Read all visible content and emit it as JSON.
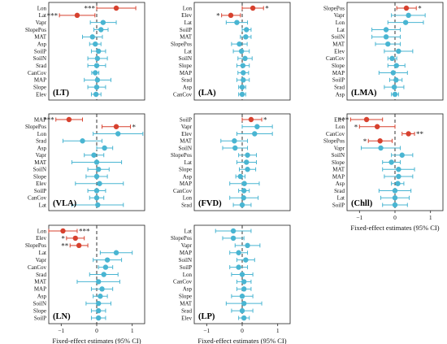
{
  "figure": {
    "xlabel": "Fixed-effect estimates (95% CI)",
    "xlim": [
      -1.35,
      1.35
    ],
    "xticks": [
      -1,
      0,
      1
    ],
    "colors": {
      "significant": "#d7412e",
      "nonsignificant": "#49b5d2",
      "zero_line": "#333333",
      "frame": "#222222"
    }
  },
  "chart_data": [
    {
      "type": "forest",
      "panel_label": "(LT)",
      "rows": [
        {
          "label": "Lon",
          "est": 0.55,
          "lo": 0.0,
          "hi": 1.1,
          "sig": true,
          "stars": "***",
          "stars_side": "left"
        },
        {
          "label": "Lat",
          "est": -0.55,
          "lo": -1.05,
          "hi": -0.05,
          "sig": true,
          "stars": "***",
          "stars_side": "left"
        },
        {
          "label": "Vapr",
          "est": 0.18,
          "lo": -0.18,
          "hi": 0.55,
          "sig": false
        },
        {
          "label": "SlopePos",
          "est": 0.12,
          "lo": -0.08,
          "hi": 0.32,
          "sig": false
        },
        {
          "label": "MAT",
          "est": -0.12,
          "lo": -0.4,
          "hi": 0.16,
          "sig": false
        },
        {
          "label": "Asp",
          "est": -0.04,
          "lo": -0.2,
          "hi": 0.12,
          "sig": false
        },
        {
          "label": "SoilP",
          "est": 0.05,
          "lo": -0.15,
          "hi": 0.25,
          "sig": false
        },
        {
          "label": "SoilN",
          "est": 0.02,
          "lo": -0.25,
          "hi": 0.3,
          "sig": false
        },
        {
          "label": "Srad",
          "est": 0.0,
          "lo": -0.25,
          "hi": 0.25,
          "sig": false
        },
        {
          "label": "CanCov",
          "est": -0.04,
          "lo": -0.14,
          "hi": 0.06,
          "sig": false
        },
        {
          "label": "MAP",
          "est": 0.02,
          "lo": -0.35,
          "hi": 0.4,
          "sig": false
        },
        {
          "label": "Slope",
          "est": 0.0,
          "lo": -0.25,
          "hi": 0.25,
          "sig": false
        },
        {
          "label": "Elev",
          "est": -0.02,
          "lo": -0.15,
          "hi": 0.12,
          "sig": false
        }
      ]
    },
    {
      "type": "forest",
      "panel_label": "(LA)",
      "rows": [
        {
          "label": "Lon",
          "est": 0.3,
          "lo": 0.0,
          "hi": 0.6,
          "sig": true,
          "stars": "*",
          "stars_side": "right"
        },
        {
          "label": "Elev",
          "est": -0.32,
          "lo": -0.58,
          "hi": -0.05,
          "sig": true,
          "stars": "*",
          "stars_side": "left"
        },
        {
          "label": "Lat",
          "est": -0.15,
          "lo": -0.45,
          "hi": 0.15,
          "sig": false
        },
        {
          "label": "SoilP",
          "est": 0.12,
          "lo": 0.0,
          "hi": 0.25,
          "sig": false
        },
        {
          "label": "MAT",
          "est": 0.1,
          "lo": -0.05,
          "hi": 0.25,
          "sig": false
        },
        {
          "label": "SlopePos",
          "est": -0.08,
          "lo": -0.3,
          "hi": 0.14,
          "sig": false
        },
        {
          "label": "Lat",
          "est": -0.02,
          "lo": -0.25,
          "hi": 0.2,
          "sig": false
        },
        {
          "label": "SoilN",
          "est": 0.08,
          "lo": -0.12,
          "hi": 0.28,
          "sig": false
        },
        {
          "label": "Slope",
          "est": 0.02,
          "lo": -0.15,
          "hi": 0.2,
          "sig": false
        },
        {
          "label": "MAP",
          "est": 0.03,
          "lo": -0.12,
          "hi": 0.18,
          "sig": false
        },
        {
          "label": "Srad",
          "est": 0.03,
          "lo": -0.15,
          "hi": 0.2,
          "sig": false
        },
        {
          "label": "Asp",
          "est": 0.0,
          "lo": -0.1,
          "hi": 0.1,
          "sig": false
        },
        {
          "label": "CanCov",
          "est": 0.0,
          "lo": -0.1,
          "hi": 0.1,
          "sig": false
        }
      ]
    },
    {
      "type": "forest",
      "panel_label": "(LMA)",
      "rows": [
        {
          "label": "SlopePos",
          "est": 0.32,
          "lo": 0.05,
          "hi": 0.6,
          "sig": true,
          "stars": "*",
          "stars_side": "right"
        },
        {
          "label": "Vapr",
          "est": 0.38,
          "lo": -0.1,
          "hi": 0.85,
          "sig": false
        },
        {
          "label": "Lon",
          "est": 0.3,
          "lo": -0.2,
          "hi": 0.8,
          "sig": false
        },
        {
          "label": "Lat",
          "est": -0.25,
          "lo": -0.65,
          "hi": 0.15,
          "sig": false
        },
        {
          "label": "SoilN",
          "est": -0.25,
          "lo": -0.65,
          "hi": 0.15,
          "sig": false
        },
        {
          "label": "MAT",
          "est": -0.2,
          "lo": -0.55,
          "hi": 0.15,
          "sig": false
        },
        {
          "label": "Elev",
          "est": 0.1,
          "lo": -0.3,
          "hi": 0.5,
          "sig": false
        },
        {
          "label": "CanCov",
          "est": -0.08,
          "lo": -0.2,
          "hi": 0.05,
          "sig": false
        },
        {
          "label": "Slope",
          "est": 0.04,
          "lo": -0.2,
          "hi": 0.28,
          "sig": false
        },
        {
          "label": "MAP",
          "est": -0.05,
          "lo": -0.45,
          "hi": 0.35,
          "sig": false
        },
        {
          "label": "SoilP",
          "est": 0.03,
          "lo": -0.15,
          "hi": 0.2,
          "sig": false
        },
        {
          "label": "Srad",
          "est": -0.02,
          "lo": -0.3,
          "hi": 0.25,
          "sig": false
        },
        {
          "label": "Asp",
          "est": 0.0,
          "lo": -0.1,
          "hi": 0.1,
          "sig": false
        }
      ]
    },
    {
      "type": "forest",
      "panel_label": "(VLA)",
      "rows": [
        {
          "label": "MAP",
          "est": -0.78,
          "lo": -1.15,
          "hi": -0.4,
          "sig": true,
          "stars": "***",
          "stars_side": "left"
        },
        {
          "label": "SlopePos",
          "est": 0.55,
          "lo": 0.15,
          "hi": 0.95,
          "sig": true,
          "stars": "*",
          "stars_side": "right"
        },
        {
          "label": "Lon",
          "est": 0.6,
          "lo": -0.1,
          "hi": 1.3,
          "sig": false
        },
        {
          "label": "Srad",
          "est": -0.4,
          "lo": -0.95,
          "hi": 0.15,
          "sig": false
        },
        {
          "label": "Asp",
          "est": 0.22,
          "lo": 0.0,
          "hi": 0.45,
          "sig": false
        },
        {
          "label": "Vapr",
          "est": -0.08,
          "lo": -0.35,
          "hi": 0.2,
          "sig": false
        },
        {
          "label": "MAT",
          "est": 0.0,
          "lo": -0.7,
          "hi": 0.7,
          "sig": false
        },
        {
          "label": "SoilN",
          "est": 0.05,
          "lo": -0.25,
          "hi": 0.35,
          "sig": false
        },
        {
          "label": "Slope",
          "est": 0.0,
          "lo": -0.3,
          "hi": 0.3,
          "sig": false
        },
        {
          "label": "Elev",
          "est": 0.08,
          "lo": -0.6,
          "hi": 0.75,
          "sig": false
        },
        {
          "label": "SoilP",
          "est": 0.0,
          "lo": -0.25,
          "hi": 0.25,
          "sig": false
        },
        {
          "label": "CanCov",
          "est": 0.0,
          "lo": -0.2,
          "hi": 0.2,
          "sig": false
        },
        {
          "label": "Lat",
          "est": 0.03,
          "lo": -0.7,
          "hi": 0.75,
          "sig": false
        }
      ]
    },
    {
      "type": "forest",
      "panel_label": "(FVD)",
      "rows": [
        {
          "label": "SoilP",
          "est": 0.25,
          "lo": 0.0,
          "hi": 0.55,
          "sig": true,
          "stars": "*",
          "stars_side": "right"
        },
        {
          "label": "Vapr",
          "est": 0.42,
          "lo": 0.0,
          "hi": 0.85,
          "sig": false
        },
        {
          "label": "Elev",
          "est": 0.35,
          "lo": -0.15,
          "hi": 0.85,
          "sig": false
        },
        {
          "label": "MAT",
          "est": -0.22,
          "lo": -0.6,
          "hi": 0.15,
          "sig": false
        },
        {
          "label": "SoilN",
          "est": -0.2,
          "lo": -0.55,
          "hi": 0.15,
          "sig": false
        },
        {
          "label": "SlopePos",
          "est": 0.15,
          "lo": -0.1,
          "hi": 0.4,
          "sig": false
        },
        {
          "label": "Lat",
          "est": 0.12,
          "lo": -0.15,
          "hi": 0.4,
          "sig": false
        },
        {
          "label": "Slope",
          "est": 0.15,
          "lo": -0.08,
          "hi": 0.38,
          "sig": false
        },
        {
          "label": "Asp",
          "est": -0.05,
          "lo": -0.18,
          "hi": 0.08,
          "sig": false
        },
        {
          "label": "MAP",
          "est": 0.06,
          "lo": -0.35,
          "hi": 0.48,
          "sig": false
        },
        {
          "label": "CanCov",
          "est": 0.05,
          "lo": -0.1,
          "hi": 0.2,
          "sig": false
        },
        {
          "label": "Lon",
          "est": 0.04,
          "lo": -0.35,
          "hi": 0.45,
          "sig": false
        },
        {
          "label": "Srad",
          "est": 0.0,
          "lo": -0.25,
          "hi": 0.25,
          "sig": false
        }
      ]
    },
    {
      "type": "forest",
      "panel_label": "(Chll)",
      "rows": [
        {
          "label": "Elev",
          "est": -0.8,
          "lo": -1.25,
          "hi": -0.35,
          "sig": true,
          "stars": "***",
          "stars_side": "left"
        },
        {
          "label": "Lon",
          "est": -0.5,
          "lo": -1.0,
          "hi": 0.0,
          "sig": true,
          "stars": "*",
          "stars_side": "left"
        },
        {
          "label": "CanCov",
          "est": 0.38,
          "lo": 0.2,
          "hi": 0.55,
          "sig": true,
          "stars": "**",
          "stars_side": "right"
        },
        {
          "label": "SlopePos",
          "est": -0.42,
          "lo": -0.75,
          "hi": -0.08,
          "sig": true,
          "stars": "*",
          "stars_side": "left"
        },
        {
          "label": "Vapr",
          "est": -0.4,
          "lo": -0.95,
          "hi": 0.15,
          "sig": false
        },
        {
          "label": "SoilN",
          "est": 0.2,
          "lo": -0.1,
          "hi": 0.5,
          "sig": false
        },
        {
          "label": "Slope",
          "est": -0.1,
          "lo": -0.35,
          "hi": 0.15,
          "sig": false
        },
        {
          "label": "MAT",
          "est": 0.1,
          "lo": -0.35,
          "hi": 0.55,
          "sig": false
        },
        {
          "label": "MAP",
          "est": 0.1,
          "lo": -0.3,
          "hi": 0.5,
          "sig": false
        },
        {
          "label": "Asp",
          "est": 0.08,
          "lo": -0.1,
          "hi": 0.25,
          "sig": false
        },
        {
          "label": "Srad",
          "est": 0.0,
          "lo": -0.45,
          "hi": 0.45,
          "sig": false
        },
        {
          "label": "Lat",
          "est": 0.0,
          "lo": -0.4,
          "hi": 0.4,
          "sig": false
        },
        {
          "label": "SoilP",
          "est": 0.0,
          "lo": -0.35,
          "hi": 0.35,
          "sig": false
        }
      ]
    },
    {
      "type": "forest",
      "panel_label": "(LN)",
      "rows": [
        {
          "label": "Lon",
          "est": -0.95,
          "lo": -1.35,
          "hi": -0.55,
          "sig": true,
          "stars": "***",
          "stars_side": "right"
        },
        {
          "label": "Elev",
          "est": -0.6,
          "lo": -0.85,
          "hi": -0.35,
          "sig": true,
          "stars": "*",
          "stars_side": "left"
        },
        {
          "label": "SlopePos",
          "est": -0.5,
          "lo": -0.75,
          "hi": -0.25,
          "sig": true,
          "stars": "**",
          "stars_side": "left"
        },
        {
          "label": "Lat",
          "est": 0.55,
          "lo": 0.1,
          "hi": 1.0,
          "sig": false
        },
        {
          "label": "Vapr",
          "est": 0.3,
          "lo": -0.1,
          "hi": 0.7,
          "sig": false
        },
        {
          "label": "CanCov",
          "est": 0.25,
          "lo": 0.05,
          "hi": 0.45,
          "sig": false
        },
        {
          "label": "Srad",
          "est": 0.2,
          "lo": -0.2,
          "hi": 0.6,
          "sig": false
        },
        {
          "label": "MAT",
          "est": 0.05,
          "lo": -0.55,
          "hi": 0.65,
          "sig": false
        },
        {
          "label": "MAP",
          "est": 0.15,
          "lo": -0.15,
          "hi": 0.45,
          "sig": false
        },
        {
          "label": "Asp",
          "est": 0.1,
          "lo": -0.1,
          "hi": 0.3,
          "sig": false
        },
        {
          "label": "SoilN",
          "est": 0.05,
          "lo": -0.3,
          "hi": 0.4,
          "sig": false
        },
        {
          "label": "Slope",
          "est": 0.05,
          "lo": -0.15,
          "hi": 0.25,
          "sig": false
        },
        {
          "label": "SoilP",
          "est": 0.05,
          "lo": -0.15,
          "hi": 0.25,
          "sig": false
        }
      ]
    },
    {
      "type": "forest",
      "panel_label": "(LP)",
      "rows": [
        {
          "label": "Lat",
          "est": -0.25,
          "lo": -0.75,
          "hi": 0.25,
          "sig": false
        },
        {
          "label": "SlopePos",
          "est": -0.25,
          "lo": -0.55,
          "hi": 0.05,
          "sig": false
        },
        {
          "label": "Vapr",
          "est": 0.15,
          "lo": -0.2,
          "hi": 0.5,
          "sig": false
        },
        {
          "label": "MAP",
          "est": -0.1,
          "lo": -0.35,
          "hi": 0.15,
          "sig": false
        },
        {
          "label": "SoilN",
          "est": 0.1,
          "lo": -0.15,
          "hi": 0.35,
          "sig": false
        },
        {
          "label": "SoilP",
          "est": -0.1,
          "lo": -0.35,
          "hi": 0.15,
          "sig": false
        },
        {
          "label": "Lon",
          "est": 0.0,
          "lo": -0.3,
          "hi": 0.3,
          "sig": false
        },
        {
          "label": "CanCov",
          "est": 0.05,
          "lo": -0.15,
          "hi": 0.25,
          "sig": false
        },
        {
          "label": "Asp",
          "est": 0.05,
          "lo": -0.15,
          "hi": 0.25,
          "sig": false
        },
        {
          "label": "Slope",
          "est": 0.0,
          "lo": -0.3,
          "hi": 0.3,
          "sig": false
        },
        {
          "label": "MAT",
          "est": 0.05,
          "lo": -0.45,
          "hi": 0.55,
          "sig": false
        },
        {
          "label": "Srad",
          "est": 0.0,
          "lo": -0.3,
          "hi": 0.3,
          "sig": false
        },
        {
          "label": "Elev",
          "est": 0.05,
          "lo": -0.1,
          "hi": 0.2,
          "sig": false
        }
      ]
    }
  ]
}
